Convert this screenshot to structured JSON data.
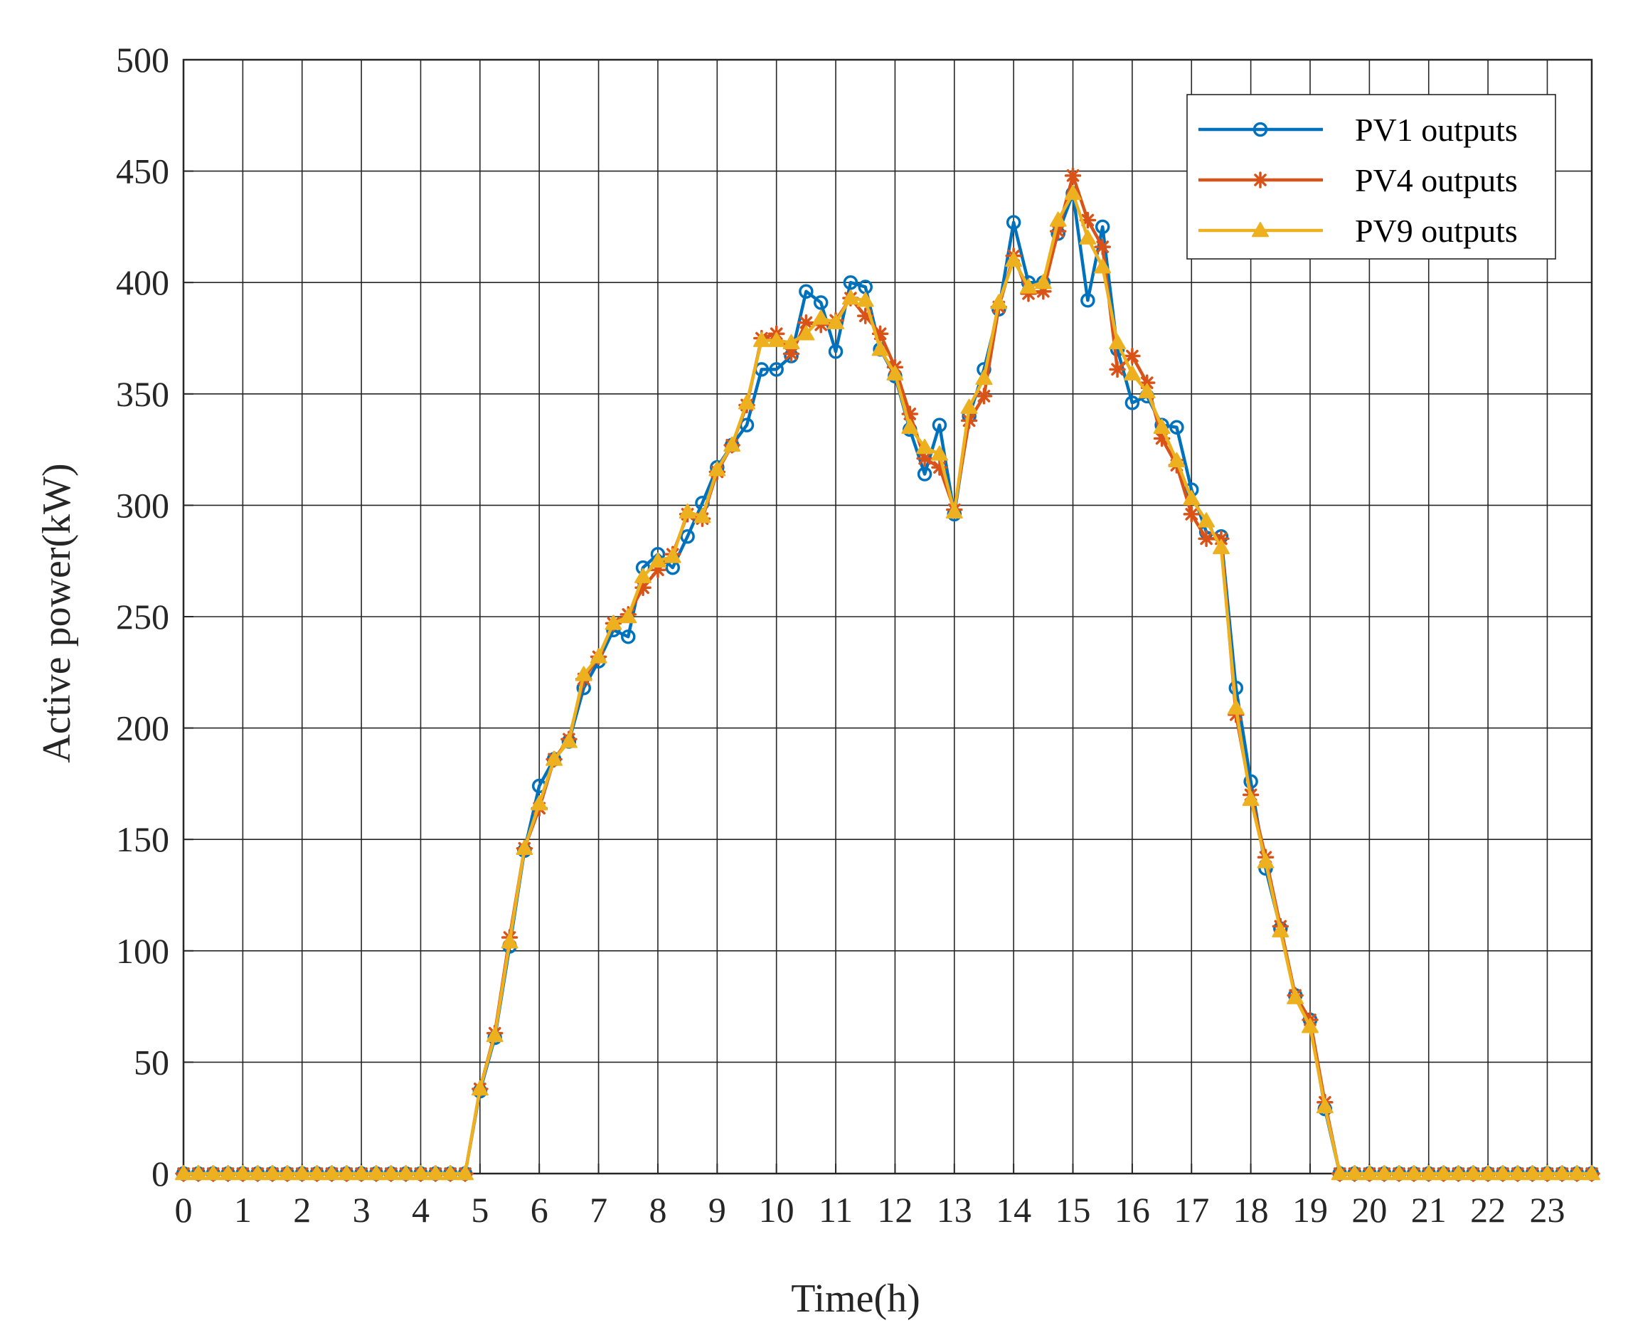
{
  "chart_data": {
    "type": "line",
    "xlabel": "Time(h)",
    "ylabel": "Active power(kW)",
    "xlim": [
      0,
      23.75
    ],
    "ylim": [
      0,
      500
    ],
    "xticks": [
      "0",
      "1",
      "2",
      "3",
      "4",
      "5",
      "6",
      "7",
      "8",
      "9",
      "10",
      "11",
      "12",
      "13",
      "14",
      "15",
      "16",
      "17",
      "18",
      "19",
      "20",
      "21",
      "22",
      "23"
    ],
    "yticks": [
      "0",
      "50",
      "100",
      "150",
      "200",
      "250",
      "300",
      "350",
      "400",
      "450",
      "500"
    ],
    "grid": true,
    "legend_position": "top-right",
    "x": [
      0,
      0.25,
      0.5,
      0.75,
      1,
      1.25,
      1.5,
      1.75,
      2,
      2.25,
      2.5,
      2.75,
      3,
      3.25,
      3.5,
      3.75,
      4,
      4.25,
      4.5,
      4.75,
      5,
      5.25,
      5.5,
      5.75,
      6,
      6.25,
      6.5,
      6.75,
      7,
      7.25,
      7.5,
      7.75,
      8,
      8.25,
      8.5,
      8.75,
      9,
      9.25,
      9.5,
      9.75,
      10,
      10.25,
      10.5,
      10.75,
      11,
      11.25,
      11.5,
      11.75,
      12,
      12.25,
      12.5,
      12.75,
      13,
      13.25,
      13.5,
      13.75,
      14,
      14.25,
      14.5,
      14.75,
      15,
      15.25,
      15.5,
      15.75,
      16,
      16.25,
      16.5,
      16.75,
      17,
      17.25,
      17.5,
      17.75,
      18,
      18.25,
      18.5,
      18.75,
      19,
      19.25,
      19.5,
      19.75,
      20,
      20.25,
      20.5,
      20.75,
      21,
      21.25,
      21.5,
      21.75,
      22,
      22.25,
      22.5,
      22.75,
      23,
      23.25,
      23.5,
      23.75
    ],
    "series": [
      {
        "name": "PV1 outputs",
        "color": "#0072BD",
        "marker": "circle",
        "values": [
          0,
          0,
          0,
          0,
          0,
          0,
          0,
          0,
          0,
          0,
          0,
          0,
          0,
          0,
          0,
          0,
          0,
          0,
          0,
          0,
          37,
          61,
          102,
          145,
          174,
          186,
          194,
          218,
          230,
          244,
          241,
          272,
          278,
          272,
          286,
          301,
          317,
          327,
          336,
          361,
          361,
          367,
          396,
          391,
          369,
          400,
          398,
          370,
          358,
          334,
          314,
          336,
          296,
          340,
          361,
          388,
          427,
          400,
          400,
          422,
          440,
          392,
          425,
          370,
          346,
          349,
          336,
          335,
          307,
          288,
          286,
          218,
          176,
          137,
          110,
          80,
          69,
          29,
          0,
          0,
          0,
          0,
          0,
          0,
          0,
          0,
          0,
          0,
          0,
          0,
          0,
          0,
          0,
          0,
          0,
          0
        ]
      },
      {
        "name": "PV4 outputs",
        "color": "#D95319",
        "marker": "star",
        "values": [
          0,
          0,
          0,
          0,
          0,
          0,
          0,
          0,
          0,
          0,
          0,
          0,
          0,
          0,
          0,
          0,
          0,
          0,
          0,
          0,
          38,
          63,
          106,
          146,
          164,
          186,
          195,
          222,
          232,
          247,
          251,
          263,
          271,
          278,
          296,
          294,
          315,
          327,
          345,
          375,
          377,
          368,
          382,
          381,
          383,
          393,
          385,
          377,
          362,
          341,
          321,
          317,
          298,
          338,
          349,
          389,
          412,
          395,
          396,
          423,
          448,
          428,
          416,
          361,
          367,
          355,
          330,
          318,
          296,
          285,
          285,
          206,
          170,
          142,
          111,
          80,
          69,
          32,
          0,
          0,
          0,
          0,
          0,
          0,
          0,
          0,
          0,
          0,
          0,
          0,
          0,
          0,
          0,
          0,
          0,
          0
        ]
      },
      {
        "name": "PV9 outputs",
        "color": "#EDB120",
        "marker": "triangle",
        "values": [
          0,
          0,
          0,
          0,
          0,
          0,
          0,
          0,
          0,
          0,
          0,
          0,
          0,
          0,
          0,
          0,
          0,
          0,
          0,
          0,
          38,
          62,
          104,
          146,
          166,
          186,
          194,
          224,
          232,
          247,
          250,
          268,
          275,
          277,
          297,
          295,
          316,
          327,
          346,
          374,
          374,
          373,
          377,
          384,
          382,
          393,
          392,
          370,
          359,
          335,
          326,
          323,
          297,
          344,
          357,
          391,
          410,
          398,
          400,
          428,
          440,
          420,
          407,
          373,
          359,
          351,
          335,
          320,
          303,
          293,
          281,
          209,
          168,
          140,
          109,
          79,
          66,
          30,
          0,
          0,
          0,
          0,
          0,
          0,
          0,
          0,
          0,
          0,
          0,
          0,
          0,
          0,
          0,
          0,
          0,
          0
        ]
      }
    ]
  }
}
